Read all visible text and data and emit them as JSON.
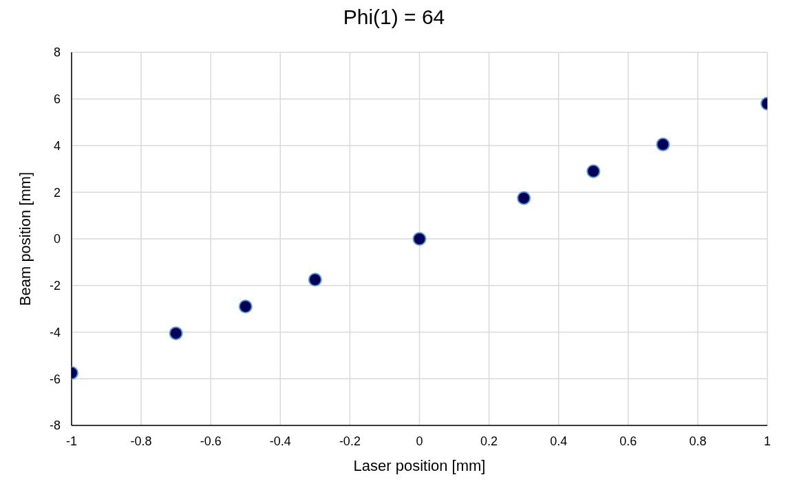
{
  "chart_data": {
    "type": "scatter",
    "title": "Phi(1) = 64",
    "xlabel": "Laser position [mm]",
    "ylabel": "Beam position [mm]",
    "x": [
      -1,
      -0.7,
      -0.5,
      -0.3,
      0,
      0.3,
      0.5,
      0.7,
      1
    ],
    "series": [
      {
        "color": "#000058",
        "values": [
          -5.75,
          -4.05,
          -2.9,
          -1.75,
          0,
          1.75,
          2.9,
          4.05,
          5.8
        ]
      }
    ],
    "xlim": [
      -1,
      1
    ],
    "xticks": [
      -1,
      -0.8,
      -0.6,
      -0.4,
      -0.2,
      0,
      0.2,
      0.4,
      0.6,
      0.8,
      1
    ],
    "ylim": [
      -8,
      8
    ],
    "yticks": [
      -8,
      -6,
      -4,
      -2,
      0,
      2,
      4,
      6,
      8
    ],
    "grid": true,
    "marker": "circle",
    "legend": false
  }
}
